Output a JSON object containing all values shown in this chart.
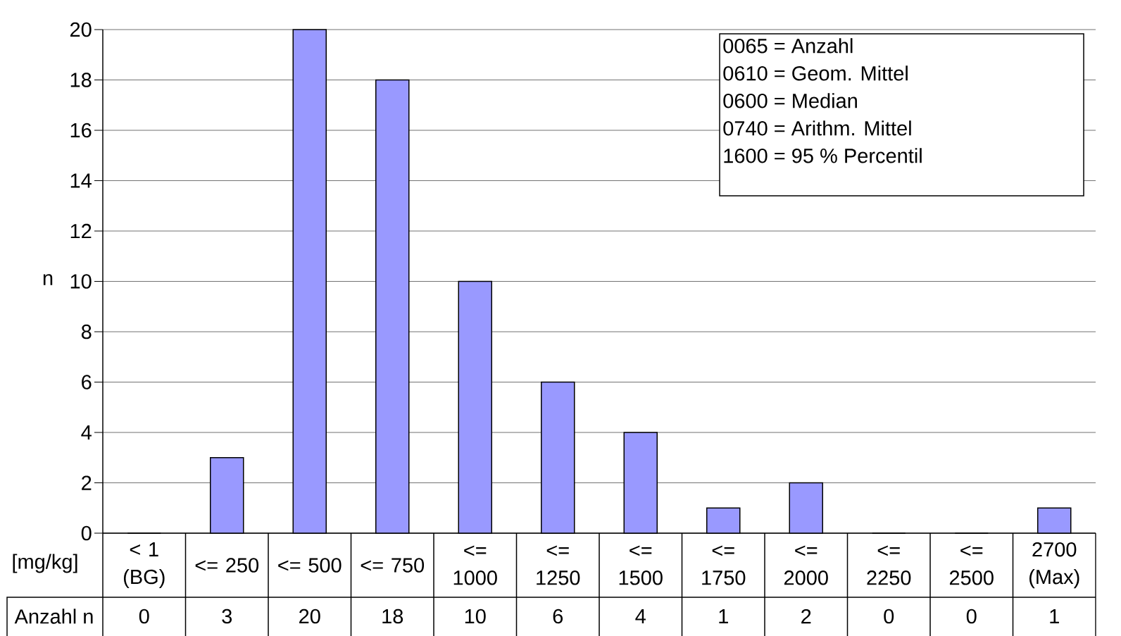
{
  "chart_data": {
    "type": "bar",
    "xlabel": "[mg/kg]",
    "ylabel": "n",
    "categories": [
      "< 1 (BG)",
      "<= 250",
      "<= 500",
      "<= 750",
      "<= 1000",
      "<= 1250",
      "<= 1500",
      "<= 1750",
      "<= 2000",
      "<= 2250",
      "<= 2500",
      "2700 (Max)"
    ],
    "series": [
      {
        "name": "Anzahl n",
        "color": "#9999ff",
        "values": [
          0,
          3,
          20,
          18,
          10,
          6,
          4,
          1,
          2,
          0,
          0,
          1
        ]
      }
    ],
    "ylim": [
      0,
      20
    ],
    "yticks": [
      0,
      2,
      4,
      6,
      8,
      10,
      12,
      14,
      16,
      18,
      20
    ],
    "grid": "y",
    "data_labels": true,
    "annotations": [
      "0065 = Anzahl",
      "0610 = Geom. Mittel",
      "0600 = Median",
      "0740 = Arithm. Mittel",
      "1600 = 95 % Percentil"
    ]
  }
}
